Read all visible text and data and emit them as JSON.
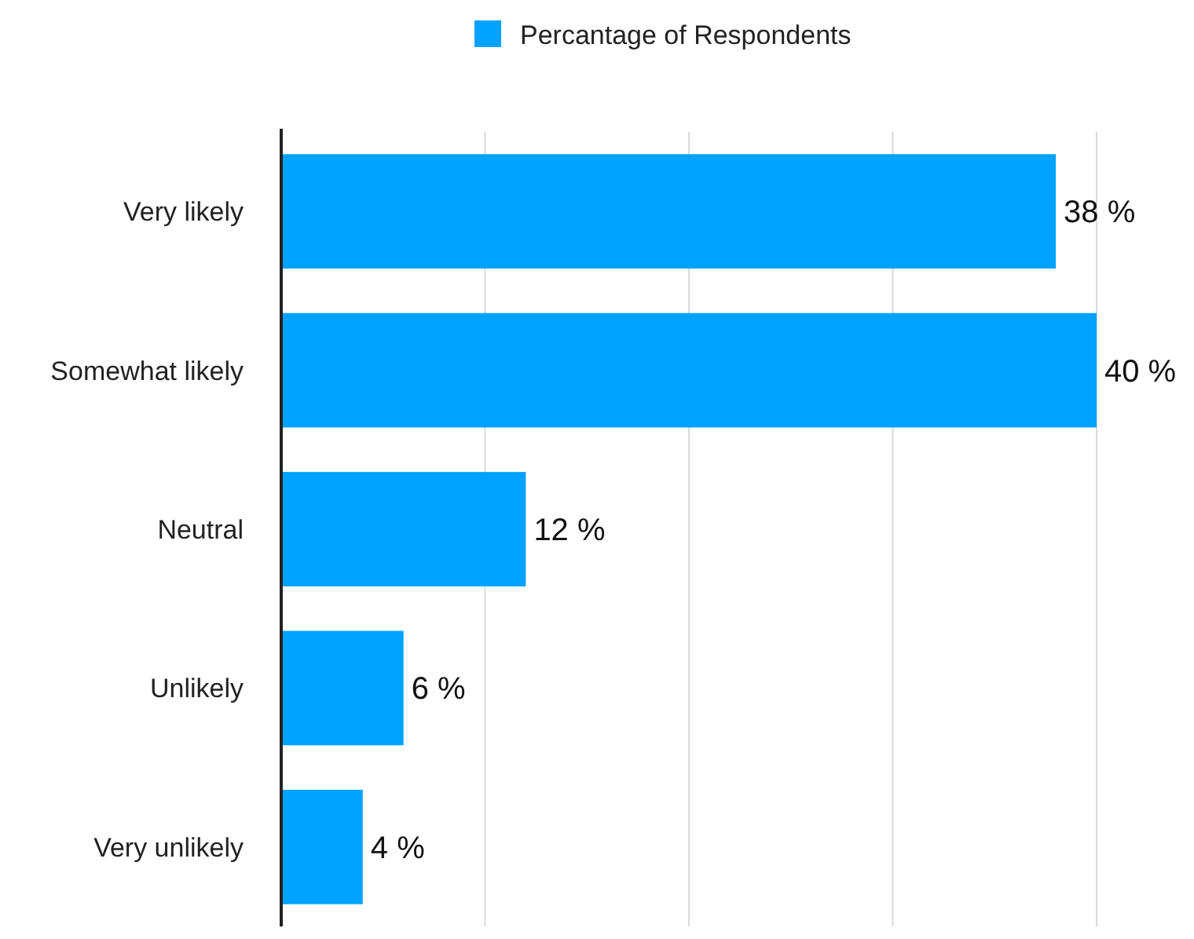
{
  "chart_data": {
    "type": "bar",
    "orientation": "horizontal",
    "categories": [
      "Very likely",
      "Somewhat likely",
      "Neutral",
      "Unlikely",
      "Very unlikely"
    ],
    "series": [
      {
        "name": "Percantage of Respondents",
        "color": "#00a2ff",
        "values": [
          38,
          40,
          12,
          6,
          4
        ],
        "value_labels": [
          "38 %",
          "40 %",
          "12 %",
          "6 %",
          "4 %"
        ]
      }
    ],
    "xlim": [
      0,
      40
    ],
    "xticks": [
      {
        "value": 0,
        "label": null
      },
      {
        "value": 10,
        "label": null
      },
      {
        "value": 20,
        "label": null
      },
      {
        "value": 30,
        "label": null
      },
      {
        "value": 40,
        "label": null
      }
    ],
    "grid": "x",
    "legend": "top",
    "tick_labels": "y"
  }
}
